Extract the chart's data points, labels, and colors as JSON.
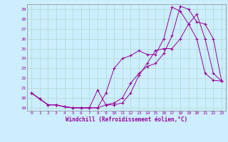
{
  "xlabel": "Windchill (Refroidissement éolien,°C)",
  "background_color": "#cceeff",
  "grid_color": "#aaddcc",
  "line_color": "#990099",
  "xlim": [
    -0.5,
    23.5
  ],
  "ylim": [
    18.7,
    29.5
  ],
  "yticks": [
    19,
    20,
    21,
    22,
    23,
    24,
    25,
    26,
    27,
    28,
    29
  ],
  "xticks": [
    0,
    1,
    2,
    3,
    4,
    5,
    6,
    7,
    8,
    9,
    10,
    11,
    12,
    13,
    14,
    15,
    16,
    17,
    18,
    19,
    20,
    21,
    22,
    23
  ],
  "series1_x": [
    0,
    1,
    2,
    3,
    4,
    5,
    6,
    7,
    8,
    9,
    10,
    11,
    12,
    13,
    14,
    15,
    16,
    17,
    18,
    19,
    20,
    21,
    22,
    23
  ],
  "series1_y": [
    20.5,
    19.9,
    19.3,
    19.3,
    19.1,
    19.0,
    19.0,
    19.0,
    20.8,
    19.3,
    19.5,
    20.0,
    21.5,
    22.5,
    23.2,
    23.5,
    24.5,
    26.3,
    29.3,
    29.0,
    27.7,
    27.5,
    26.0,
    21.7
  ],
  "series2_x": [
    0,
    1,
    2,
    3,
    4,
    5,
    6,
    7,
    8,
    9,
    10,
    11,
    12,
    13,
    14,
    15,
    16,
    17,
    18,
    19,
    20,
    21,
    22,
    23
  ],
  "series2_y": [
    20.5,
    19.9,
    19.3,
    19.3,
    19.1,
    19.0,
    19.0,
    19.0,
    19.0,
    19.3,
    19.3,
    19.5,
    20.5,
    22.3,
    23.5,
    24.8,
    25.0,
    25.0,
    26.0,
    27.5,
    28.5,
    26.0,
    22.5,
    21.7
  ],
  "series3_x": [
    0,
    1,
    2,
    3,
    4,
    5,
    6,
    7,
    8,
    9,
    10,
    11,
    12,
    13,
    14,
    15,
    16,
    17,
    18,
    19,
    20,
    21,
    22,
    23
  ],
  "series3_y": [
    20.5,
    19.9,
    19.3,
    19.3,
    19.1,
    19.0,
    19.0,
    19.0,
    19.0,
    20.5,
    23.0,
    24.0,
    24.3,
    24.8,
    24.4,
    24.4,
    26.0,
    29.2,
    28.8,
    27.5,
    26.0,
    22.5,
    21.8,
    21.7
  ]
}
